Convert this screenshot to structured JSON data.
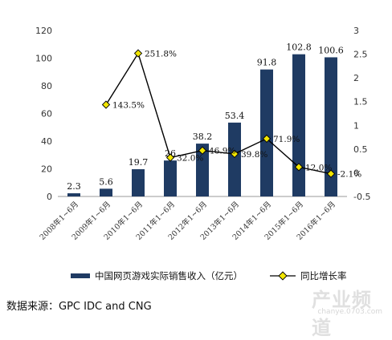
{
  "chart_data": {
    "type": "bar+line",
    "categories": [
      "2008年1~6月",
      "2009年1~6月",
      "2010年1~6月",
      "2011年1~6月",
      "2012年1~6月",
      "2013年1~6月",
      "2014年1~6月",
      "2015年1~6月",
      "2016年1~6月"
    ],
    "series": [
      {
        "name": "中国网页游戏实际销售收入（亿元）",
        "type": "bar",
        "axis": "left",
        "color": "#1f3b63",
        "values": [
          2.3,
          5.6,
          19.7,
          26,
          38.2,
          53.4,
          91.8,
          102.8,
          100.6
        ],
        "labels": [
          "2.3",
          "5.6",
          "19.7",
          "26",
          "38.2",
          "53.4",
          "91.8",
          "102.8",
          "100.6"
        ]
      },
      {
        "name": "同比增长率",
        "type": "line",
        "axis": "right",
        "line_color": "#000000",
        "marker_color": "#f2e600",
        "values": [
          null,
          1.435,
          2.518,
          0.32,
          0.469,
          0.398,
          0.719,
          0.12,
          -0.021
        ],
        "labels": [
          "",
          "143.5%",
          "251.8%",
          "32.0%",
          "46.9%",
          "39.8%",
          "71.9%",
          "12.0%",
          "-2.1%"
        ]
      }
    ],
    "y_left": {
      "min": 0,
      "max": 120,
      "ticks": [
        "0",
        "20",
        "40",
        "60",
        "80",
        "100",
        "120"
      ]
    },
    "y_right": {
      "min": -0.5,
      "max": 3,
      "ticks": [
        "-0.5",
        "0",
        "0.5",
        "1",
        "1.5",
        "2",
        "2.5",
        "3"
      ]
    },
    "grid": false,
    "legend_position": "bottom"
  },
  "source_text": "数据来源：GPC IDC and CNG",
  "watermark": {
    "main": "产业频道",
    "sub": "chanye.0703.com"
  }
}
